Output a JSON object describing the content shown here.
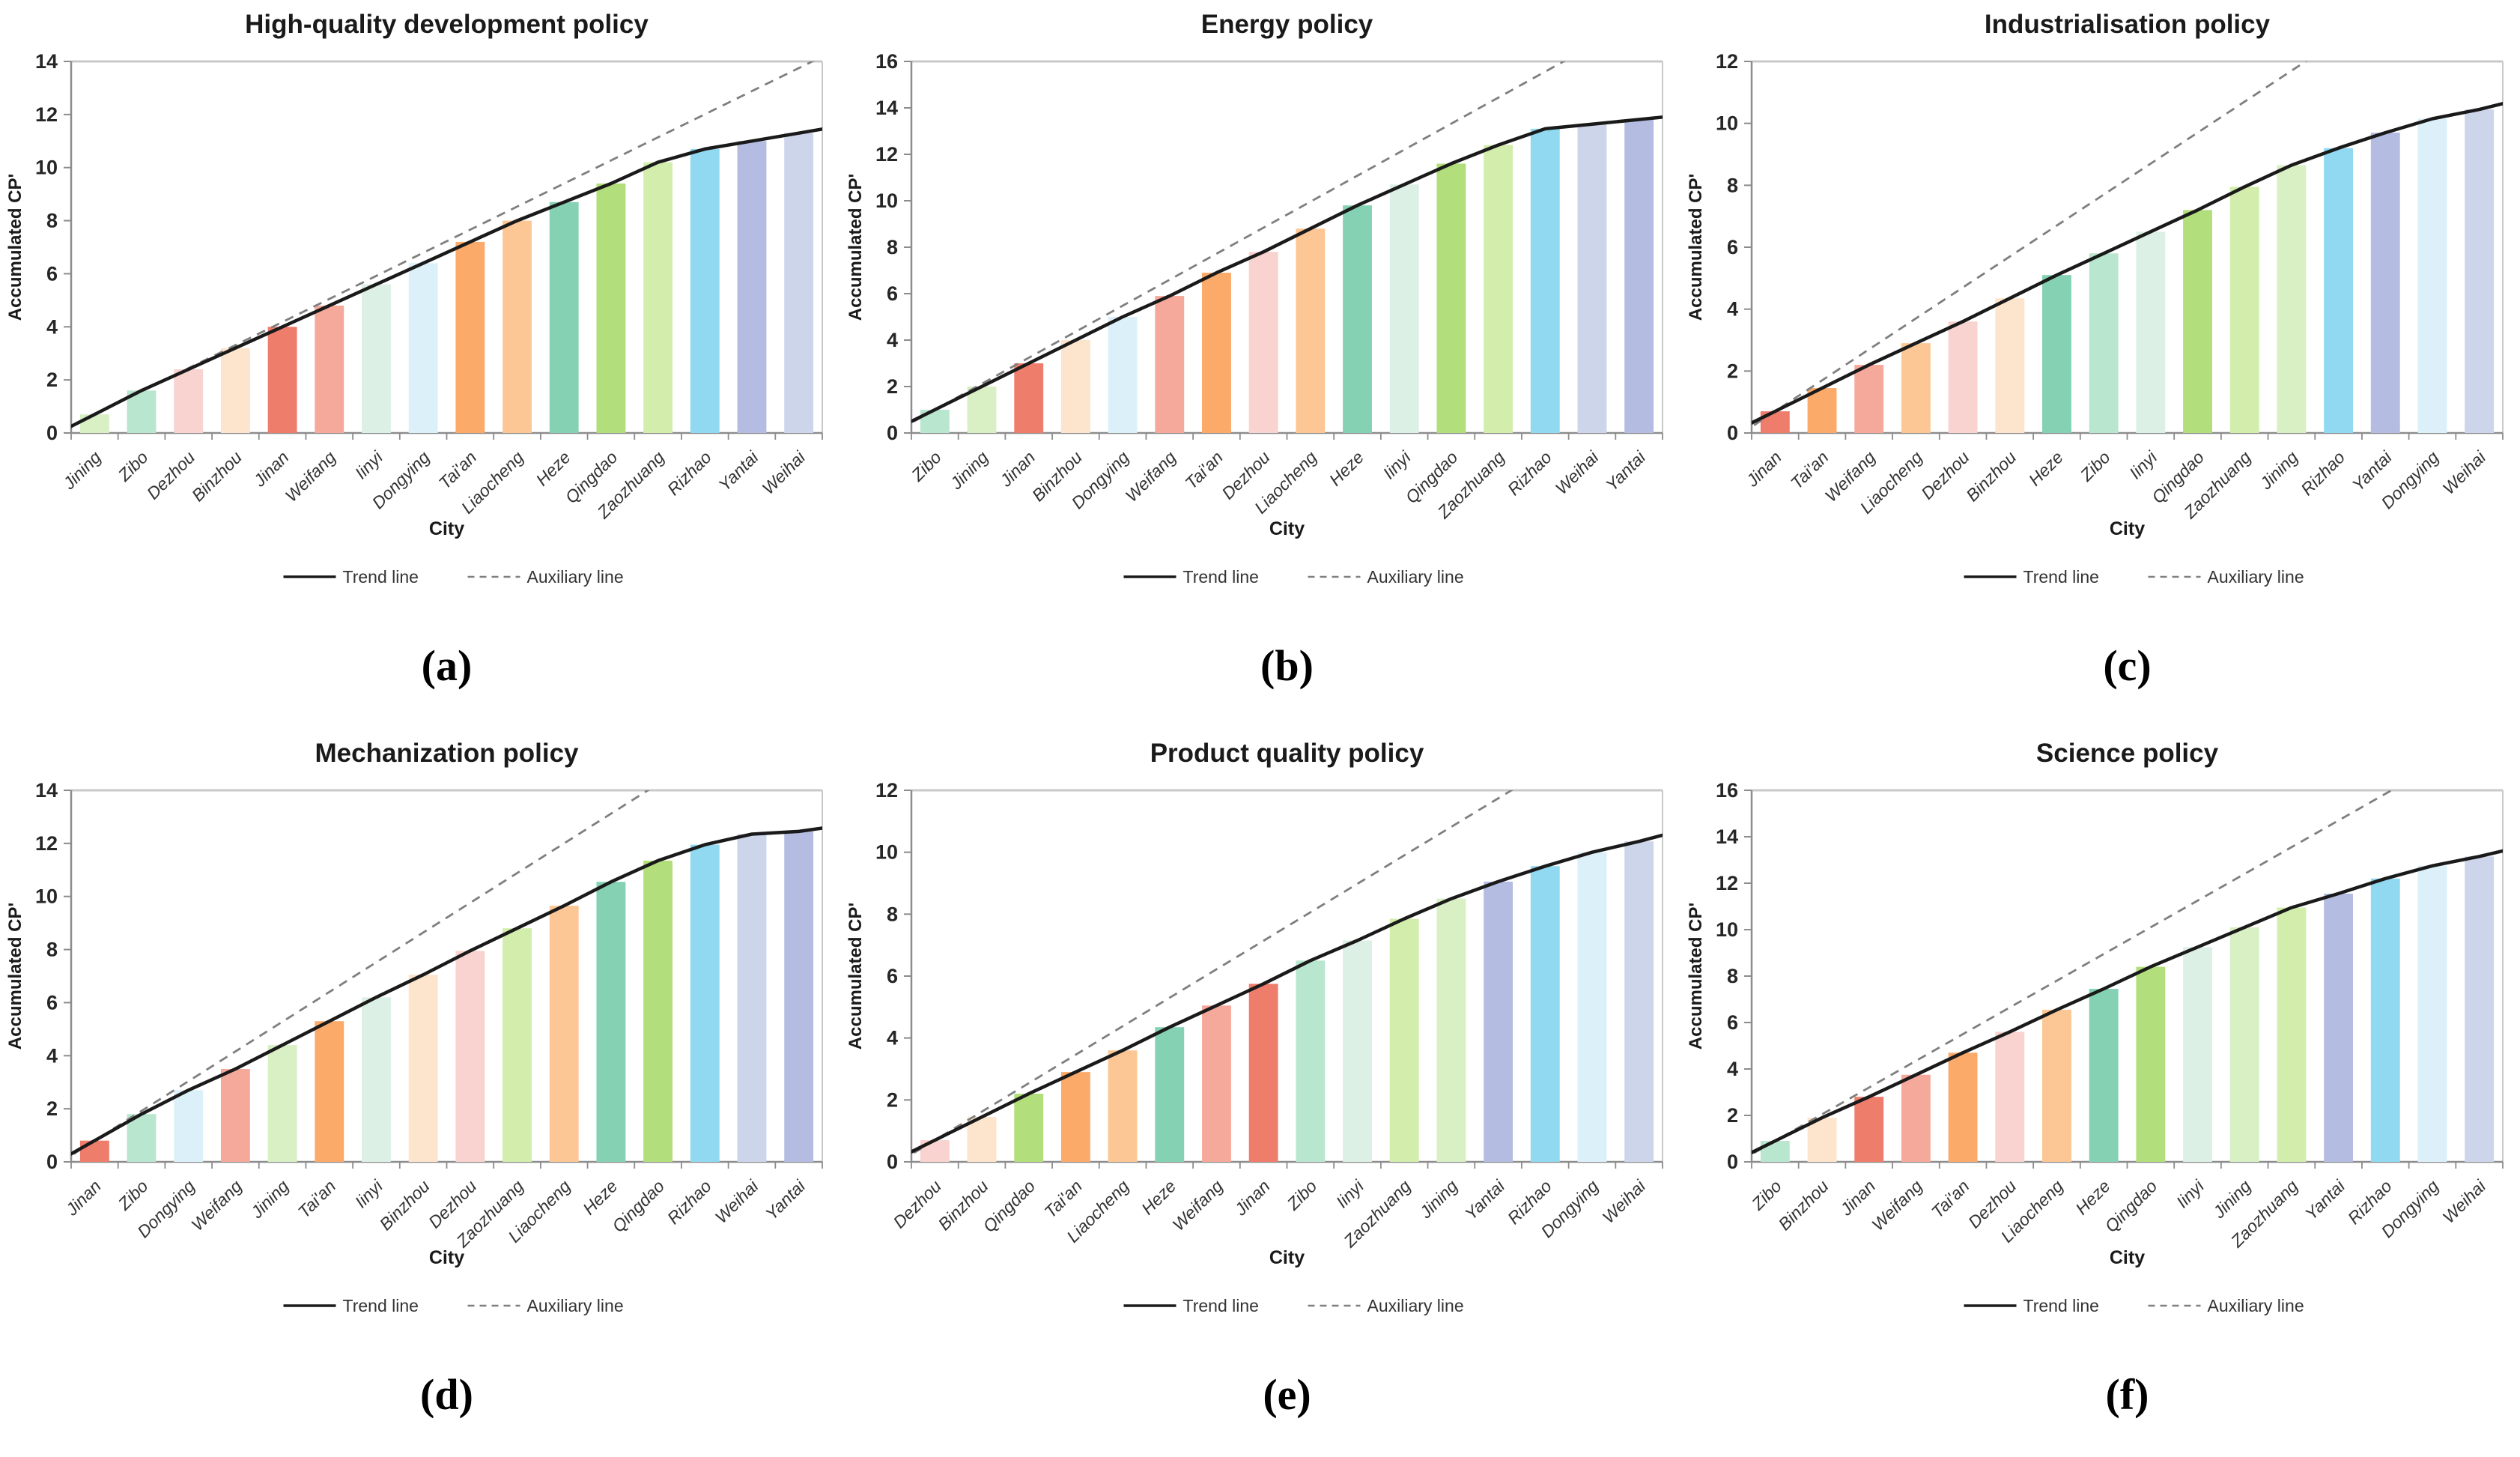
{
  "figure": {
    "background": "#ffffff",
    "ylabel": "Accumulated CP'",
    "xlabel": "City",
    "legend": {
      "trend_label": "Trend line",
      "auxiliary_label": "Auxiliary line"
    },
    "trend_line_color": "#1a1a1a",
    "auxiliary_line_color": "#7f7f7f",
    "axis_color": "#8c8c8c",
    "frame_color": "#c9c9c9"
  },
  "city_colors": {
    "Jinan": "#ee7d6c",
    "Weifang": "#f5a99b",
    "Dezhou": "#f8d3cf",
    "Tai'an": "#fbaa6a",
    "Liaocheng": "#fcc795",
    "Binzhou": "#fde4cc",
    "Heze": "#85d1b3",
    "Zibo": "#b9e6cf",
    "Iinyi": "#ddf0e5",
    "Qingdao": "#b2de7b",
    "Zaozhuang": "#d3edac",
    "Jining": "#d9efc4",
    "Rizhao": "#90d9f1",
    "Yantai": "#b4bde1",
    "Dongying": "#dcf0fa",
    "Weihai": "#cdd5eb"
  },
  "chart_data": [
    {
      "type": "bar",
      "panel_label": "(a)",
      "title": "High-quality development policy",
      "xlabel": "City",
      "ylabel": "Accumulated CP'",
      "ylim": [
        0,
        14
      ],
      "ytick_step": 2,
      "yticks": [
        0,
        2,
        4,
        6,
        8,
        10,
        12,
        14
      ],
      "legend": [
        "Trend line",
        "Auxiliary line"
      ],
      "categories": [
        "Jining",
        "Zibo",
        "Dezhou",
        "Binzhou",
        "Jinan",
        "Weifang",
        "Iinyi",
        "Dongying",
        "Tai'an",
        "Liaocheng",
        "Heze",
        "Qingdao",
        "Zaozhuang",
        "Rizhao",
        "Yantai",
        "Weihai"
      ],
      "values": [
        0.7,
        1.6,
        2.4,
        3.2,
        4.0,
        4.8,
        5.6,
        6.4,
        7.2,
        8.0,
        8.7,
        9.4,
        10.2,
        10.7,
        11.0,
        11.3
      ],
      "aux_slope_per_category": 0.87
    },
    {
      "type": "bar",
      "panel_label": "(b)",
      "title": "Energy policy",
      "xlabel": "City",
      "ylabel": "Accumulated CP'",
      "ylim": [
        0,
        16
      ],
      "ytick_step": 2,
      "yticks": [
        0,
        2,
        4,
        6,
        8,
        10,
        12,
        14,
        16
      ],
      "legend": [
        "Trend line",
        "Auxiliary line"
      ],
      "categories": [
        "Zibo",
        "Jining",
        "Jinan",
        "Binzhou",
        "Dongying",
        "Weifang",
        "Tai'an",
        "Dezhou",
        "Liaocheng",
        "Heze",
        "Iinyi",
        "Qingdao",
        "Zaozhuang",
        "Rizhao",
        "Weihai",
        "Yantai"
      ],
      "values": [
        1.0,
        2.0,
        3.0,
        4.0,
        5.0,
        5.9,
        6.9,
        7.8,
        8.8,
        9.8,
        10.7,
        11.6,
        12.4,
        13.1,
        13.3,
        13.5
      ],
      "aux_slope_per_category": 1.12
    },
    {
      "type": "bar",
      "panel_label": "(c)",
      "title": "Industrialisation policy",
      "xlabel": "City",
      "ylabel": "Accumulated CP'",
      "ylim": [
        0,
        12
      ],
      "ytick_step": 2,
      "yticks": [
        0,
        2,
        4,
        6,
        8,
        10,
        12
      ],
      "legend": [
        "Trend line",
        "Auxiliary line"
      ],
      "categories": [
        "Jinan",
        "Tai'an",
        "Weifang",
        "Liaocheng",
        "Dezhou",
        "Binzhou",
        "Heze",
        "Zibo",
        "Iinyi",
        "Qingdao",
        "Zaozhuang",
        "Jining",
        "Rizhao",
        "Yantai",
        "Dongying",
        "Weihai"
      ],
      "values": [
        0.7,
        1.45,
        2.2,
        2.9,
        3.6,
        4.35,
        5.1,
        5.8,
        6.5,
        7.2,
        7.95,
        8.65,
        9.2,
        9.7,
        10.15,
        10.45
      ],
      "aux_slope_per_category": 1.0
    },
    {
      "type": "bar",
      "panel_label": "(d)",
      "title": "Mechanization policy",
      "xlabel": "City",
      "ylabel": "Accumulated CP'",
      "ylim": [
        0,
        14
      ],
      "ytick_step": 2,
      "yticks": [
        0,
        2,
        4,
        6,
        8,
        10,
        12,
        14
      ],
      "legend": [
        "Trend line",
        "Auxiliary line"
      ],
      "categories": [
        "Jinan",
        "Zibo",
        "Dongying",
        "Weifang",
        "Jining",
        "Tai'an",
        "Iinyi",
        "Binzhou",
        "Dezhou",
        "Zaozhuang",
        "Liaocheng",
        "Heze",
        "Qingdao",
        "Rizhao",
        "Weihai",
        "Yantai"
      ],
      "values": [
        0.8,
        1.8,
        2.7,
        3.5,
        4.4,
        5.3,
        6.2,
        7.05,
        7.95,
        8.8,
        9.65,
        10.55,
        11.35,
        11.95,
        12.35,
        12.45
      ],
      "aux_slope_per_category": 1.12
    },
    {
      "type": "bar",
      "panel_label": "(e)",
      "title": "Product quality policy",
      "xlabel": "City",
      "ylabel": "Accumulated CP'",
      "ylim": [
        0,
        12
      ],
      "ytick_step": 2,
      "yticks": [
        0,
        2,
        4,
        6,
        8,
        10,
        12
      ],
      "legend": [
        "Trend line",
        "Auxiliary line"
      ],
      "categories": [
        "Dezhou",
        "Binzhou",
        "Qingdao",
        "Tai'an",
        "Liaocheng",
        "Heze",
        "Weifang",
        "Jinan",
        "Zibo",
        "Iinyi",
        "Zaozhuang",
        "Jining",
        "Yantai",
        "Rizhao",
        "Dongying",
        "Weihai"
      ],
      "values": [
        0.7,
        1.45,
        2.2,
        2.9,
        3.6,
        4.35,
        5.05,
        5.75,
        6.5,
        7.15,
        7.85,
        8.5,
        9.05,
        9.55,
        10.0,
        10.35
      ],
      "aux_slope_per_category": 0.92
    },
    {
      "type": "bar",
      "panel_label": "(f)",
      "title": "Science policy",
      "xlabel": "City",
      "ylabel": "Accumulated CP'",
      "ylim": [
        0,
        16
      ],
      "ytick_step": 2,
      "yticks": [
        0,
        2,
        4,
        6,
        8,
        10,
        12,
        14,
        16
      ],
      "legend": [
        "Trend line",
        "Auxiliary line"
      ],
      "categories": [
        "Zibo",
        "Binzhou",
        "Jinan",
        "Weifang",
        "Tai'an",
        "Dezhou",
        "Liaocheng",
        "Heze",
        "Qingdao",
        "Iinyi",
        "Jining",
        "Zaozhuang",
        "Yantai",
        "Rizhao",
        "Dongying",
        "Weihai"
      ],
      "values": [
        0.9,
        1.9,
        2.8,
        3.75,
        4.7,
        5.6,
        6.55,
        7.45,
        8.4,
        9.25,
        10.1,
        10.95,
        11.55,
        12.2,
        12.75,
        13.15
      ],
      "aux_slope_per_category": 1.15
    }
  ]
}
